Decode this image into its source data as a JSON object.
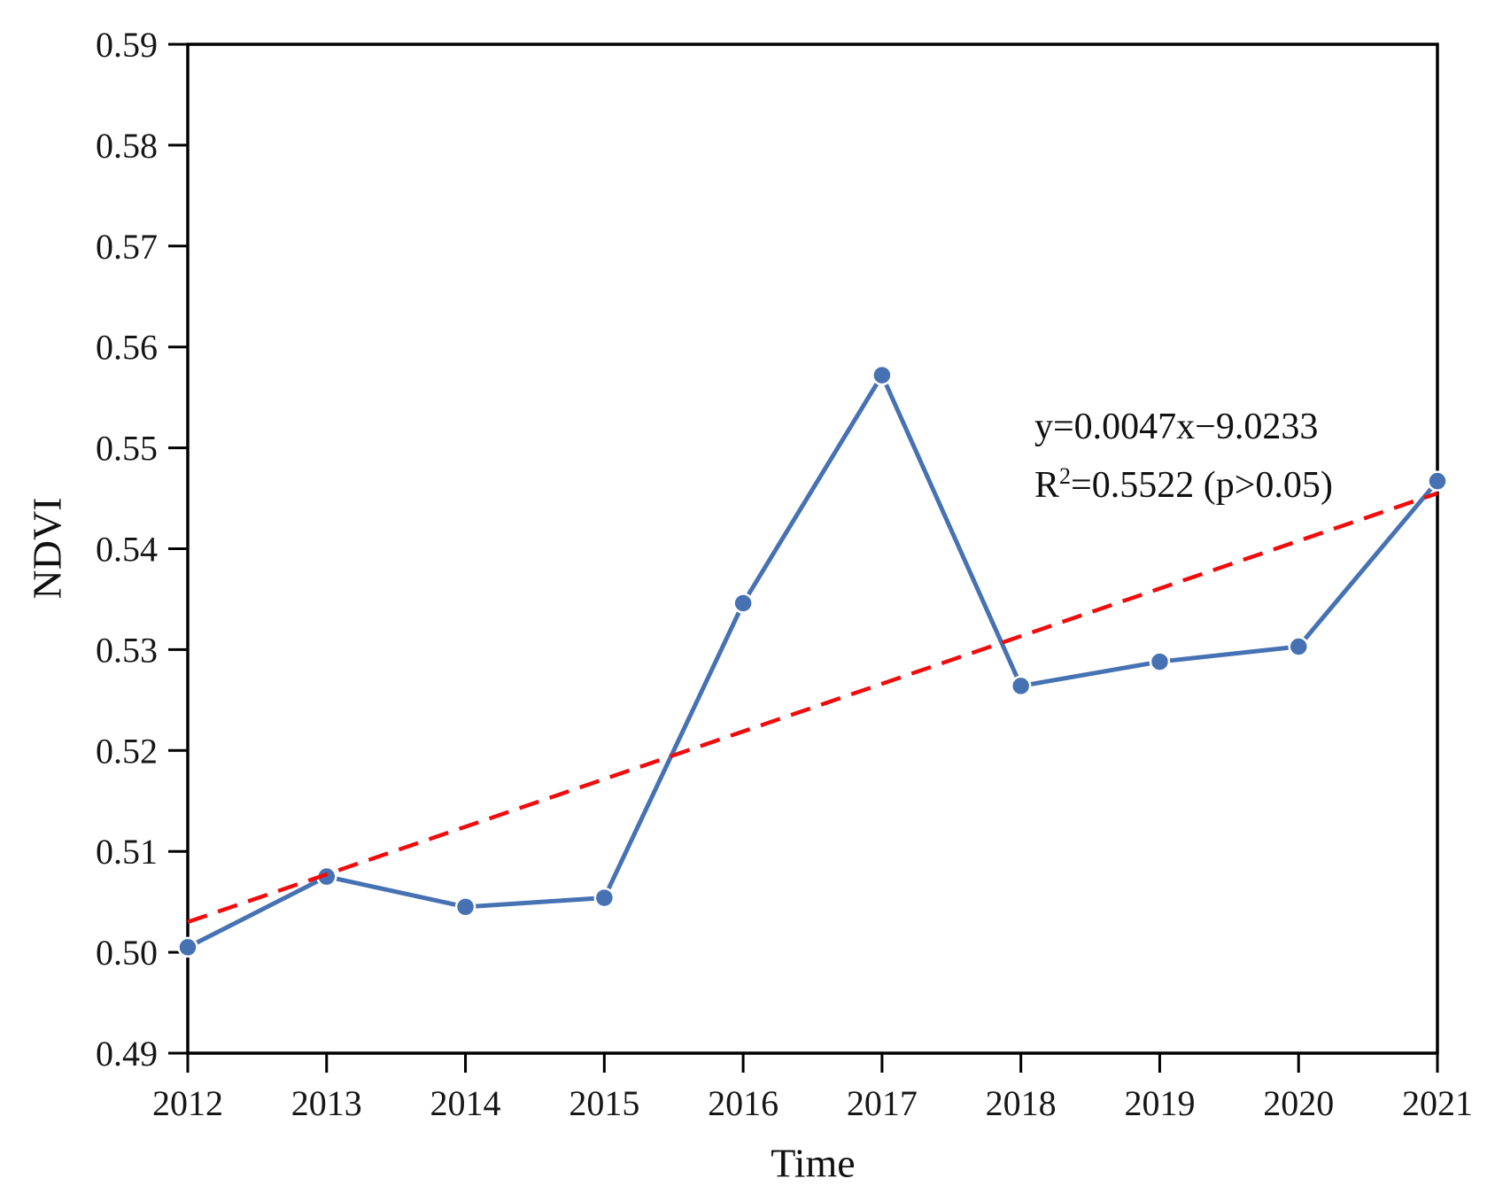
{
  "figure": {
    "background": "#ffffff"
  },
  "chart_data": {
    "type": "line",
    "title": "",
    "xlabel": "Time",
    "ylabel": "NDVI",
    "x": [
      2012,
      2013,
      2014,
      2015,
      2016,
      2017,
      2018,
      2019,
      2020,
      2021
    ],
    "series": [
      {
        "name": "NDVI",
        "values": [
          0.5005,
          0.5075,
          0.5045,
          0.5054,
          0.5346,
          0.5572,
          0.5264,
          0.5288,
          0.5303,
          0.5467
        ],
        "color": "#4672b4",
        "marker": "circle",
        "line_style": "solid"
      }
    ],
    "trendline": {
      "x_start": 2012,
      "y_start": 0.503,
      "x_end": 2021,
      "y_end": 0.5455,
      "color": "#f00c0c",
      "style": "dashed",
      "equation": "y=0.0047x−9.0233",
      "r2_base": "R",
      "r2_sup": "2",
      "r2_rest": "=0.5522 (p>0.05)"
    },
    "xlim": [
      2012,
      2021
    ],
    "ylim": [
      0.49,
      0.59
    ],
    "x_tick_labels": [
      "2012",
      "2013",
      "2014",
      "2015",
      "2016",
      "2017",
      "2018",
      "2019",
      "2020",
      "2021"
    ],
    "y_tick_labels": [
      "0.49",
      "0.50",
      "0.51",
      "0.52",
      "0.53",
      "0.54",
      "0.55",
      "0.56",
      "0.57",
      "0.58",
      "0.59"
    ],
    "grid": false,
    "legend_position": "none",
    "axis_color": "#000000",
    "tick_label_color": "#161616"
  }
}
